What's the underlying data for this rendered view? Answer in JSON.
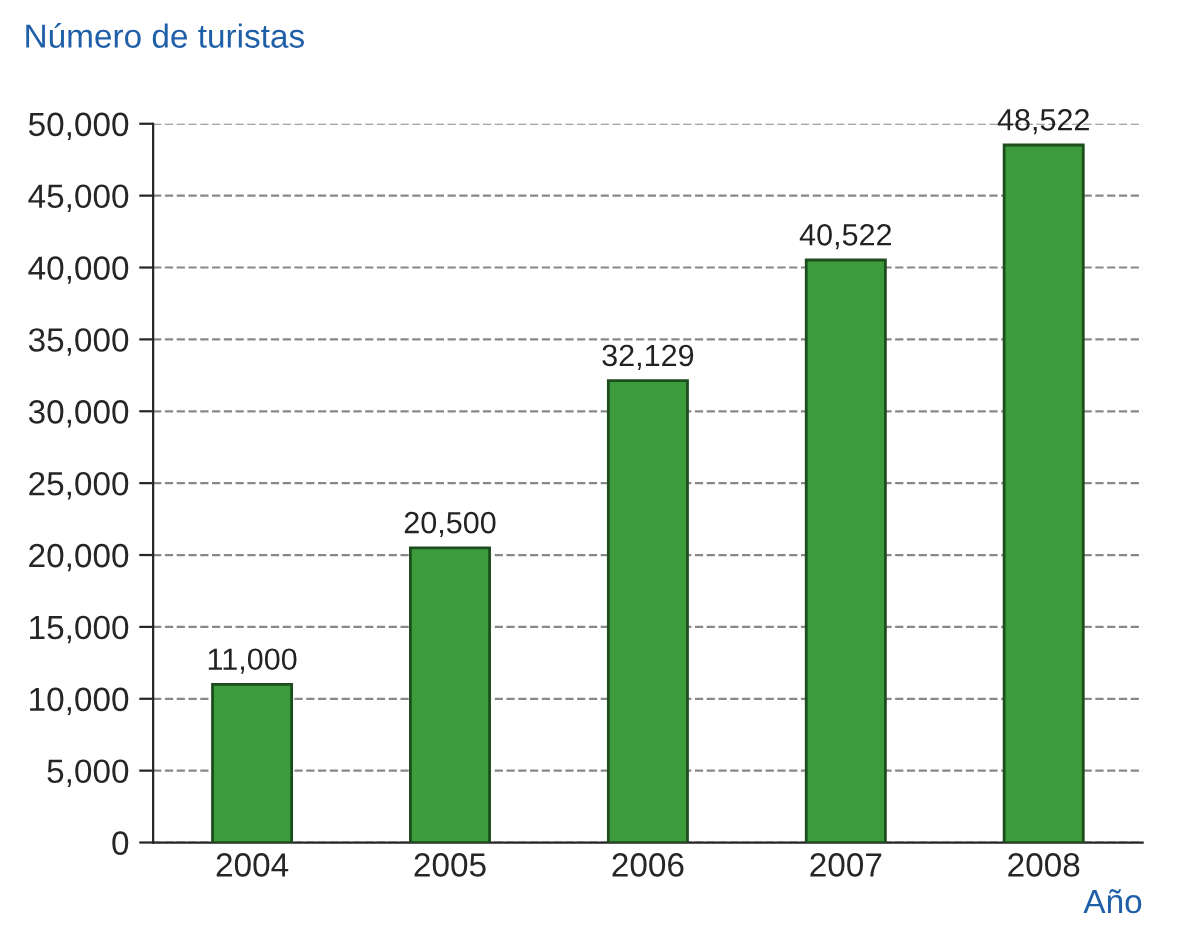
{
  "chart_data": {
    "type": "bar",
    "title": "Número de turistas",
    "xlabel": "Año",
    "categories": [
      "2004",
      "2005",
      "2006",
      "2007",
      "2008"
    ],
    "values": [
      11000,
      20500,
      32129,
      40522,
      48522
    ],
    "color": "#3c9c3c",
    "value_labels": [
      "11,000",
      "20,500",
      "32,129",
      "40,522",
      "48,522"
    ],
    "ylim": [
      0,
      50000
    ],
    "yticks": [
      {
        "value": 0,
        "label": "0"
      },
      {
        "value": 5000,
        "label": "5,000"
      },
      {
        "value": 10000,
        "label": "10,000"
      },
      {
        "value": 15000,
        "label": "15,000"
      },
      {
        "value": 20000,
        "label": "20,000"
      },
      {
        "value": 25000,
        "label": "25,000"
      },
      {
        "value": 30000,
        "label": "30,000"
      },
      {
        "value": 35000,
        "label": "35,000"
      },
      {
        "value": 40000,
        "label": "40,000"
      },
      {
        "value": 45000,
        "label": "45,000"
      },
      {
        "value": 50000,
        "label": "50,000"
      }
    ],
    "grid": "y"
  }
}
